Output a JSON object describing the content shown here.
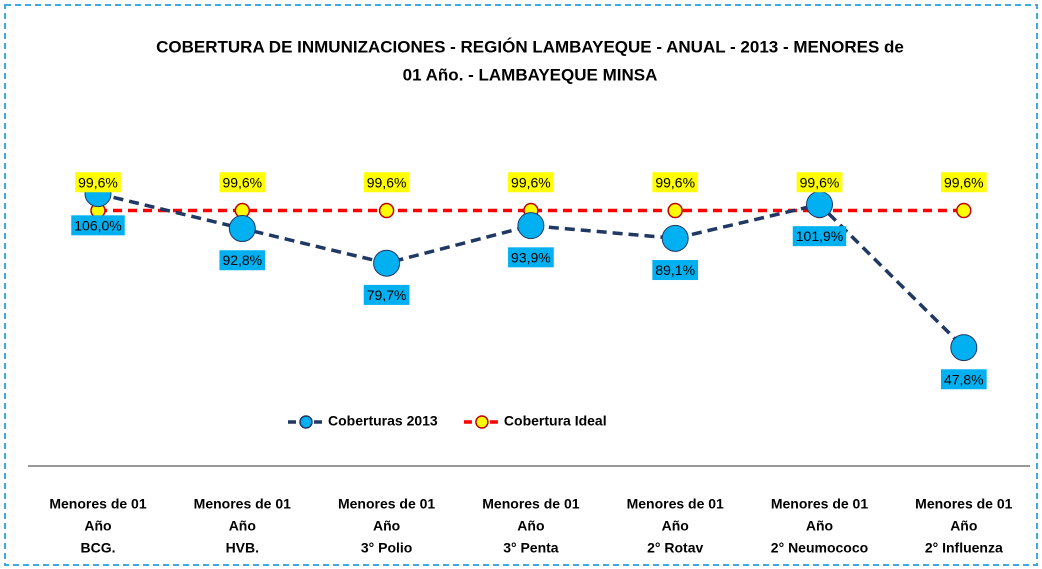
{
  "chart_data": {
    "type": "line",
    "title": [
      "COBERTURA DE INMUNIZACIONES - REGIÓN LAMBAYEQUE - ANUAL - 2013 -  MENORES de",
      "01 Año. - LAMBAYEQUE MINSA"
    ],
    "categories": [
      [
        "Menores de 01",
        "Año",
        "BCG."
      ],
      [
        "Menores de 01",
        "Año",
        "HVB."
      ],
      [
        "Menores de 01",
        "Año",
        "3° Polio"
      ],
      [
        "Menores de 01",
        "Año",
        "3° Penta"
      ],
      [
        "Menores de 01",
        "Año",
        "2° Rotav"
      ],
      [
        "Menores de 01",
        "Año",
        "2° Neumococo"
      ],
      [
        "Menores de 01",
        "Año",
        "2° Influenza"
      ]
    ],
    "series": [
      {
        "name": "Coberturas 2013",
        "color": "#1f3864",
        "marker_color": "#00b0f0",
        "label_background": "#00b0f0",
        "values": [
          106.0,
          92.8,
          79.7,
          93.9,
          89.1,
          101.9,
          47.8
        ],
        "value_labels": [
          "106,0%",
          "92,8%",
          "79,7%",
          "93,9%",
          "89,1%",
          "101,9%",
          "47,8%"
        ]
      },
      {
        "name": "Cobertura Ideal",
        "color": "#ff0000",
        "marker_color": "#ffff00",
        "label_background": "#ffff00",
        "values": [
          99.6,
          99.6,
          99.6,
          99.6,
          99.6,
          99.6,
          99.6
        ],
        "value_labels": [
          "99,6%",
          "99,6%",
          "99,6%",
          "99,6%",
          "99,6%",
          "99,6%",
          "99,6%"
        ]
      }
    ]
  }
}
